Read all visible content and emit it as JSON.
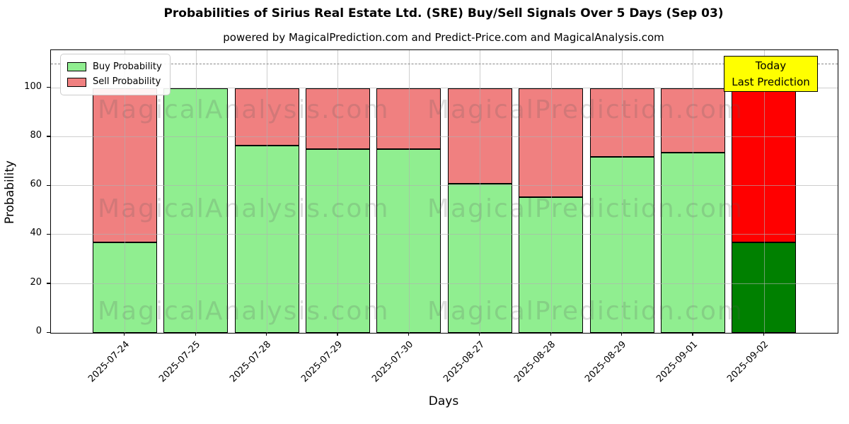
{
  "chart_data": {
    "type": "bar",
    "stacked": true,
    "title": "Probabilities of Sirius Real Estate Ltd. (SRE) Buy/Sell Signals Over 5 Days (Sep 03)",
    "subtitle": "powered by MagicalPrediction.com and Predict-Price.com and MagicalAnalysis.com",
    "xlabel": "Days",
    "ylabel": "Probability",
    "ylim": [
      0,
      115.5
    ],
    "yticks": [
      0,
      20,
      40,
      60,
      80,
      100
    ],
    "grid": true,
    "legend_position": "upper left",
    "categories": [
      "2025-07-24",
      "2025-07-25",
      "2025-07-28",
      "2025-07-29",
      "2025-07-30",
      "2025-08-27",
      "2025-08-28",
      "2025-08-29",
      "2025-09-01",
      "2025-09-02"
    ],
    "series": [
      {
        "name": "Buy Probability",
        "color": "#90EE90",
        "values": [
          37,
          100,
          76.5,
          75,
          75,
          61,
          55.5,
          72,
          73.5,
          37
        ]
      },
      {
        "name": "Sell Probability",
        "color": "#F08080",
        "values": [
          63,
          0,
          23.5,
          25,
          25,
          39,
          44.5,
          28,
          26.5,
          63
        ]
      }
    ],
    "today": {
      "index": 9,
      "buy_color": "#008000",
      "sell_color": "#FF0000"
    },
    "dashed_guideline_y": 110,
    "annotation": {
      "line1": "Today",
      "line2": "Last Prediction",
      "bg_color": "#FFFF00"
    },
    "watermarks": {
      "left_text": "MagicalAnalysis.com",
      "right_text": "MagicalPrediction.com"
    },
    "colors": {
      "bar_edge": "#000000",
      "grid": "#b0b0b0",
      "dashed_line": "#888888"
    }
  }
}
